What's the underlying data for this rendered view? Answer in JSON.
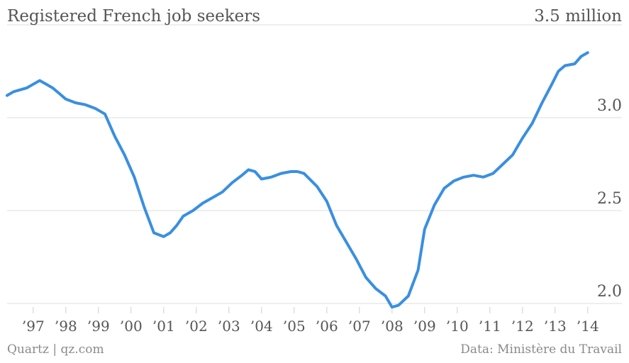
{
  "chart_data": {
    "type": "line",
    "title": "Registered French job seekers",
    "ylabel": "",
    "xlabel": "",
    "y_unit_label": "3.5 million",
    "ylim": [
      2.0,
      3.5
    ],
    "y_ticks": [
      {
        "value": 3.5,
        "label": "3.5 million"
      },
      {
        "value": 3.0,
        "label": "3.0"
      },
      {
        "value": 2.5,
        "label": "2.5"
      },
      {
        "value": 2.0,
        "label": "2.0"
      }
    ],
    "x_ticks": [
      {
        "value": 1997,
        "label": "’97"
      },
      {
        "value": 1998,
        "label": "’98"
      },
      {
        "value": 1999,
        "label": "’99"
      },
      {
        "value": 2000,
        "label": "’00"
      },
      {
        "value": 2001,
        "label": "’01"
      },
      {
        "value": 2002,
        "label": "’02"
      },
      {
        "value": 2003,
        "label": "’03"
      },
      {
        "value": 2004,
        "label": "’04"
      },
      {
        "value": 2005,
        "label": "’05"
      },
      {
        "value": 2006,
        "label": "’06"
      },
      {
        "value": 2007,
        "label": "’07"
      },
      {
        "value": 2008,
        "label": "’08"
      },
      {
        "value": 2009,
        "label": "’09"
      },
      {
        "value": 2010,
        "label": "’10"
      },
      {
        "value": 2011,
        "label": "’11"
      },
      {
        "value": 2012,
        "label": "’12"
      },
      {
        "value": 2013,
        "label": "’13"
      },
      {
        "value": 2014,
        "label": "’14"
      }
    ],
    "grid": true,
    "series_color": "#3a8fe0",
    "series": [
      {
        "name": "",
        "x": [
          1996.2,
          1996.4,
          1996.6,
          1996.8,
          1997.0,
          1997.2,
          1997.4,
          1997.6,
          1997.8,
          1998.0,
          1998.3,
          1998.6,
          1998.9,
          1999.2,
          1999.5,
          1999.8,
          2000.1,
          2000.4,
          2000.7,
          2001.0,
          2001.2,
          2001.4,
          2001.6,
          2001.9,
          2002.2,
          2002.5,
          2002.8,
          2003.1,
          2003.4,
          2003.6,
          2003.8,
          2004.0,
          2004.3,
          2004.6,
          2004.9,
          2005.1,
          2005.3,
          2005.7,
          2006.0,
          2006.3,
          2006.6,
          2006.9,
          2007.2,
          2007.5,
          2007.8,
          2008.0,
          2008.2,
          2008.5,
          2008.8,
          2009.0,
          2009.3,
          2009.6,
          2009.9,
          2010.2,
          2010.5,
          2010.8,
          2011.1,
          2011.4,
          2011.7,
          2012.0,
          2012.3,
          2012.6,
          2012.9,
          2013.1,
          2013.3,
          2013.6,
          2013.8,
          2014.0
        ],
        "values": [
          3.12,
          3.14,
          3.15,
          3.16,
          3.18,
          3.2,
          3.18,
          3.16,
          3.13,
          3.1,
          3.08,
          3.07,
          3.05,
          3.02,
          2.9,
          2.8,
          2.68,
          2.52,
          2.38,
          2.36,
          2.38,
          2.42,
          2.47,
          2.5,
          2.54,
          2.57,
          2.6,
          2.65,
          2.69,
          2.72,
          2.71,
          2.67,
          2.68,
          2.7,
          2.71,
          2.71,
          2.7,
          2.63,
          2.55,
          2.42,
          2.33,
          2.24,
          2.14,
          2.08,
          2.04,
          1.98,
          1.99,
          2.04,
          2.18,
          2.4,
          2.53,
          2.62,
          2.66,
          2.68,
          2.69,
          2.68,
          2.7,
          2.75,
          2.8,
          2.89,
          2.97,
          3.08,
          3.18,
          3.25,
          3.28,
          3.29,
          3.33,
          3.35
        ]
      }
    ]
  },
  "footer": {
    "source_left": "Quartz | qz.com",
    "source_right": "Data: Ministère du Travail"
  }
}
